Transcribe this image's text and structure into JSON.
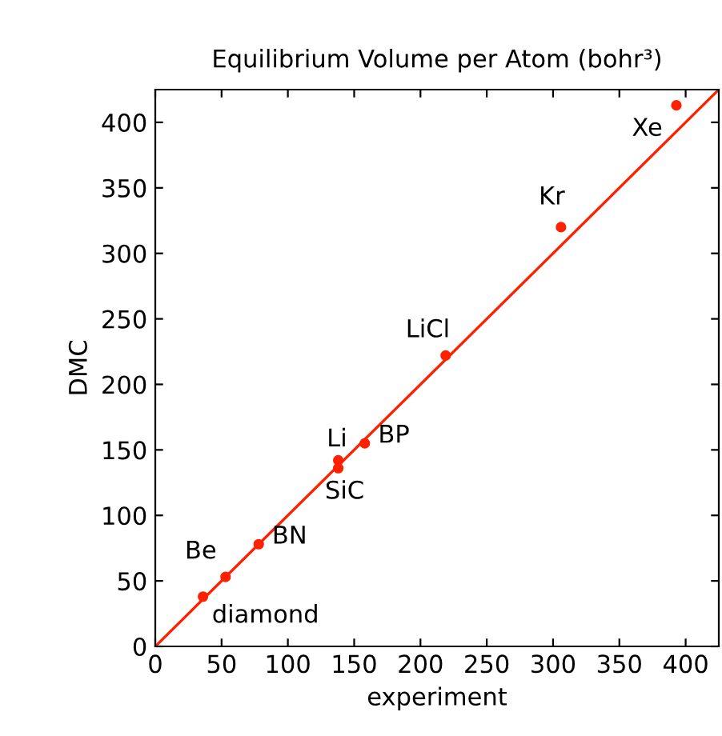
{
  "chart_data": {
    "type": "scatter",
    "title": "Equilibrium Volume per Atom (bohr³)",
    "xlabel": "experiment",
    "ylabel": "DMC",
    "series": [
      {
        "color": "#ff2000",
        "marker": "circle",
        "x": [
          36,
          53,
          78,
          138,
          138,
          158,
          219,
          306,
          393
        ],
        "values": [
          38,
          53,
          78,
          136,
          142,
          155,
          222,
          320,
          413
        ]
      },
      {
        "type": "line",
        "color": "#ff2000",
        "marker": "none",
        "line_style": "solid",
        "x": [
          0,
          425
        ],
        "values": [
          0,
          425
        ]
      }
    ],
    "annotations": [
      {
        "text": "diamond",
        "x": 36,
        "y": 38
      },
      {
        "text": "Be",
        "x": 53,
        "y": 53
      },
      {
        "text": "BN",
        "x": 78,
        "y": 78
      },
      {
        "text": "Li",
        "x": 138,
        "y": 142
      },
      {
        "text": "SiC",
        "x": 138,
        "y": 136
      },
      {
        "text": "BP",
        "x": 158,
        "y": 155
      },
      {
        "text": "LiCl",
        "x": 219,
        "y": 222
      },
      {
        "text": "Kr",
        "x": 306,
        "y": 320
      },
      {
        "text": "Xe",
        "x": 393,
        "y": 413
      }
    ],
    "xlim": [
      0,
      425
    ],
    "ylim": [
      0,
      425
    ],
    "xticks": [
      0,
      50,
      100,
      150,
      200,
      250,
      300,
      350,
      400
    ],
    "yticks": [
      0,
      50,
      100,
      150,
      200,
      250,
      300,
      350,
      400
    ],
    "grid": false,
    "legend": false
  }
}
